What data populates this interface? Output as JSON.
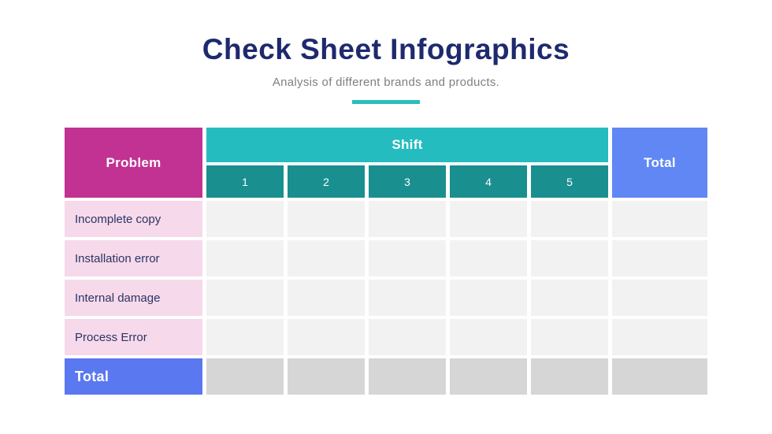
{
  "page": {
    "title": "Check Sheet Infographics",
    "subtitle": "Analysis of different brands and products."
  },
  "colors": {
    "title_navy": "#1E2A6E",
    "subtitle_gray": "#7F7F7F",
    "accent_teal": "#2ABDBE",
    "shift_header_teal": "#25BCBF",
    "shift_subheader_dark_teal": "#1A8F90",
    "problem_magenta": "#C23292",
    "row_label_pink": "#F6D9EB",
    "total_header_blue": "#6187F5",
    "total_row_blue": "#5A78F0",
    "data_cell_gray": "#F2F2F2",
    "total_cell_gray": "#D6D6D6",
    "row_label_text_navy": "#2B3563"
  },
  "table": {
    "problem_header": "Problem",
    "shift_header": "Shift",
    "shift_columns": [
      "1",
      "2",
      "3",
      "4",
      "5"
    ],
    "total_header": "Total",
    "rows": [
      {
        "label": "Incomplete copy",
        "cells": [
          "",
          "",
          "",
          "",
          ""
        ],
        "total": ""
      },
      {
        "label": "Installation error",
        "cells": [
          "",
          "",
          "",
          "",
          ""
        ],
        "total": ""
      },
      {
        "label": "Internal damage",
        "cells": [
          "",
          "",
          "",
          "",
          ""
        ],
        "total": ""
      },
      {
        "label": "Process Error",
        "cells": [
          "",
          "",
          "",
          "",
          ""
        ],
        "total": ""
      }
    ],
    "total_row": {
      "label": "Total",
      "cells": [
        "",
        "",
        "",
        "",
        ""
      ],
      "total": ""
    }
  }
}
